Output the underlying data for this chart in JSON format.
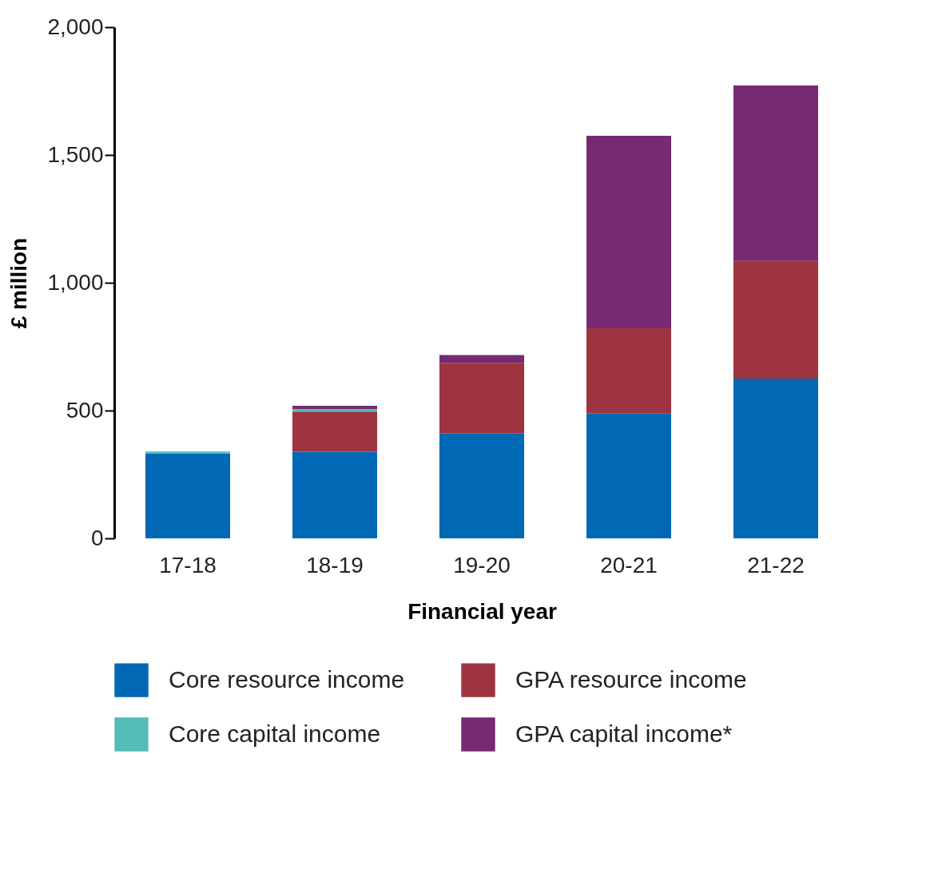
{
  "chart_data": {
    "type": "bar",
    "stacked": true,
    "xlabel": "Financial year",
    "ylabel": "£ million",
    "categories": [
      "17-18",
      "18-19",
      "19-20",
      "20-21",
      "21-22"
    ],
    "series": [
      {
        "name": "Core resource income",
        "color": "#0068b4",
        "values": [
          332,
          339,
          410,
          488,
          625
        ]
      },
      {
        "name": "GPA resource income",
        "color": "#9e3440",
        "values": [
          null,
          157,
          277,
          334,
          462
        ]
      },
      {
        "name": "Core capital income",
        "color": "#52bdb5",
        "values": [
          8,
          10,
          null,
          null,
          null
        ]
      },
      {
        "name": "GPA capital income*",
        "color": "#752a72",
        "values": [
          null,
          13,
          30,
          753,
          685
        ]
      }
    ],
    "ylim": [
      0,
      2000
    ],
    "yticks": [
      0,
      {
        "value": 500,
        "label": "500"
      },
      {
        "value": 1000,
        "label": "1,000"
      },
      {
        "value": 1500,
        "label": "1,500"
      },
      {
        "value": 2000,
        "label": "2,000"
      }
    ],
    "grid": false,
    "legend": "bottom"
  }
}
